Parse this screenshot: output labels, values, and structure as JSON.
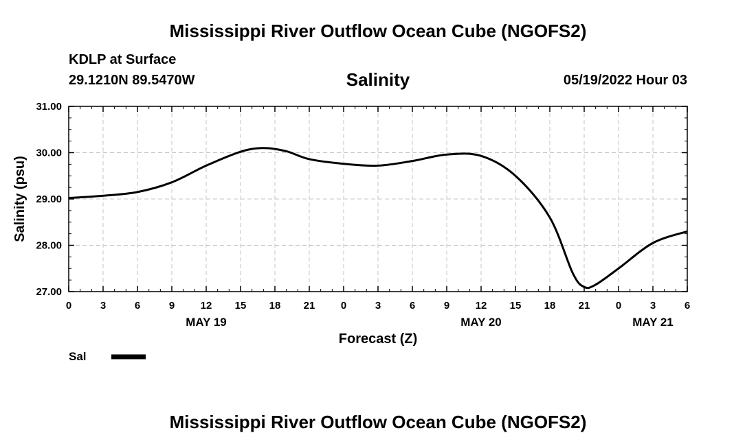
{
  "header": {
    "title": "Mississippi River Outflow Ocean Cube (NGOFS2)",
    "station": "KDLP at Surface",
    "coords": "29.1210N  89.5470W",
    "datetime": "05/19/2022 Hour 03"
  },
  "footer": {
    "title": "Mississippi River Outflow Ocean Cube (NGOFS2)"
  },
  "chart_data": {
    "type": "line",
    "title": "Salinity",
    "xlabel": "Forecast (Z)",
    "ylabel": "Salinity (psu)",
    "xlim": [
      0,
      54
    ],
    "ylim": [
      27.0,
      31.0
    ],
    "x_ticks": [
      0,
      3,
      6,
      9,
      12,
      15,
      18,
      21,
      24,
      27,
      30,
      33,
      36,
      39,
      42,
      45,
      48,
      51,
      54
    ],
    "x_tick_labels": [
      "0",
      "3",
      "6",
      "9",
      "12",
      "15",
      "18",
      "21",
      "0",
      "3",
      "6",
      "9",
      "12",
      "15",
      "18",
      "21",
      "0",
      "3",
      "6"
    ],
    "y_ticks": [
      27.0,
      28.0,
      29.0,
      30.0,
      31.0
    ],
    "y_tick_labels": [
      "27.00",
      "28.00",
      "29.00",
      "30.00",
      "31.00"
    ],
    "day_labels": [
      {
        "x": 12,
        "label": "MAY 19"
      },
      {
        "x": 36,
        "label": "MAY 20"
      },
      {
        "x": 51,
        "label": "MAY 21"
      }
    ],
    "grid": true,
    "legend": [
      {
        "name": "Sal",
        "color": "#000000"
      }
    ],
    "series": [
      {
        "name": "Sal",
        "color": "#000000",
        "x": [
          0,
          3,
          6,
          9,
          12,
          15,
          17,
          19,
          21,
          24,
          27,
          30,
          33,
          36,
          39,
          42,
          44,
          45,
          46,
          48,
          51,
          54
        ],
        "y": [
          29.02,
          29.07,
          29.15,
          29.36,
          29.72,
          30.02,
          30.1,
          30.03,
          29.86,
          29.76,
          29.72,
          29.82,
          29.96,
          29.93,
          29.5,
          28.6,
          27.4,
          27.1,
          27.15,
          27.5,
          28.05,
          28.3
        ]
      }
    ]
  }
}
